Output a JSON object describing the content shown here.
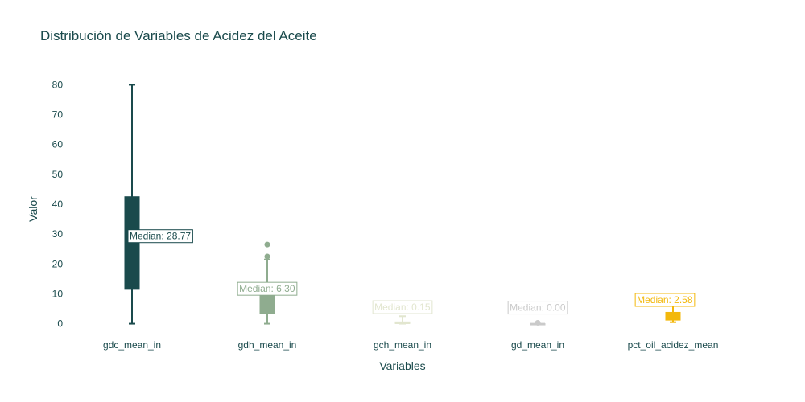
{
  "chart_data": {
    "type": "box",
    "title": "Distribución de Variables de Acidez del Aceite",
    "xlabel": "Variables",
    "ylabel": "Valor",
    "ylim": [
      -2,
      82
    ],
    "yticks": [
      0,
      10,
      20,
      30,
      40,
      50,
      60,
      70,
      80
    ],
    "grid": false,
    "legend": "none",
    "series": [
      {
        "category": "gdc_mean_in",
        "color": "#1a4a4c",
        "min": 0,
        "q1": 11.5,
        "median": 28.77,
        "q3": 42.5,
        "max": 80,
        "outliers": [],
        "median_label": "Median: 28.77"
      },
      {
        "category": "gdh_mean_in",
        "color": "#8fac8f",
        "min": 0,
        "q1": 3.5,
        "median": 6.3,
        "q3": 9.5,
        "max": 21.5,
        "outliers": [
          22.5,
          26.5
        ],
        "median_label": "Median: 6.30"
      },
      {
        "category": "gch_mean_in",
        "color": "#e2e6cf",
        "min": 0,
        "q1": 0.05,
        "median": 0.15,
        "q3": 0.6,
        "max": 2.5,
        "outliers": [],
        "median_label": "Median: 0.15"
      },
      {
        "category": "gd_mean_in",
        "color": "#cacaca",
        "min": 0,
        "q1": 0,
        "median": 0,
        "q3": 0,
        "max": 0,
        "outliers": [
          0.3
        ],
        "median_label": "Median: 0.00"
      },
      {
        "category": "pct_oil_acidez_mean",
        "color": "#f3b80c",
        "min": 0.5,
        "q1": 1.2,
        "median": 2.58,
        "q3": 3.8,
        "max": 6.5,
        "outliers": [
          7.3
        ],
        "median_label": "Median: 2.58"
      }
    ]
  }
}
